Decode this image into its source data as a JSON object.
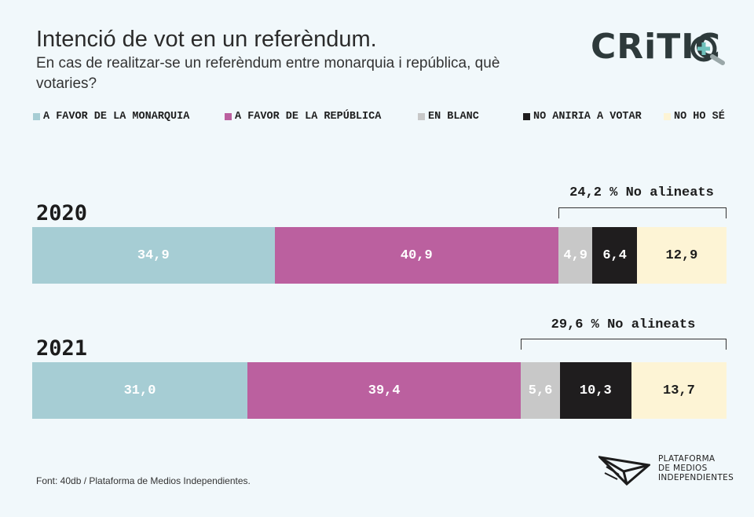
{
  "header": {
    "title": "Intenció de vot en un referèndum.",
    "subtitle": "En cas de realitzar-se un referèndum entre monarquia i república, què votaries?"
  },
  "logo": {
    "text": "CRiTIC",
    "icon": "plus-magnifier-icon"
  },
  "legend": [
    {
      "label": "A FAVOR DE LA MONARQUIA",
      "color": "#a6cdd4"
    },
    {
      "label": "A FAVOR DE LA REPÚBLICA",
      "color": "#bb609f"
    },
    {
      "label": "EN BLANC",
      "color": "#c8c8c8"
    },
    {
      "label": "NO ANIRIA A VOTAR",
      "color": "#1f1d1e"
    },
    {
      "label": "NO HO SÉ",
      "color": "#fdf4d5"
    }
  ],
  "chart_data": {
    "type": "bar",
    "orientation": "horizontal-stacked",
    "categories": [
      "2020",
      "2021"
    ],
    "series": [
      {
        "name": "A FAVOR DE LA MONARQUIA",
        "values": [
          34.9,
          31.0
        ],
        "labels": [
          "34,9",
          "31,0"
        ]
      },
      {
        "name": "A FAVOR DE LA REPÚBLICA",
        "values": [
          40.9,
          39.4
        ],
        "labels": [
          "40,9",
          "39,4"
        ]
      },
      {
        "name": "EN BLANC",
        "values": [
          4.9,
          5.6
        ],
        "labels": [
          "4,9",
          "5,6"
        ]
      },
      {
        "name": "NO ANIRIA A VOTAR",
        "values": [
          6.4,
          10.3
        ],
        "labels": [
          "6,4",
          "10,3"
        ]
      },
      {
        "name": "NO HO SÉ",
        "values": [
          12.9,
          13.7
        ],
        "labels": [
          "12,9",
          "13,7"
        ]
      }
    ],
    "annotations": [
      "24,2 % No alineats",
      "29,6 % No alineats"
    ],
    "xlim": [
      0,
      100
    ],
    "legend_position": "top"
  },
  "footer": {
    "source": "Font: 40db / Plataforma de Medios Independientes.",
    "partner_lines": [
      "PLATAFORMA",
      "DE MEDIOS",
      "INDEPENDIENTES"
    ],
    "partner_icon": "paper-plane-icon"
  }
}
